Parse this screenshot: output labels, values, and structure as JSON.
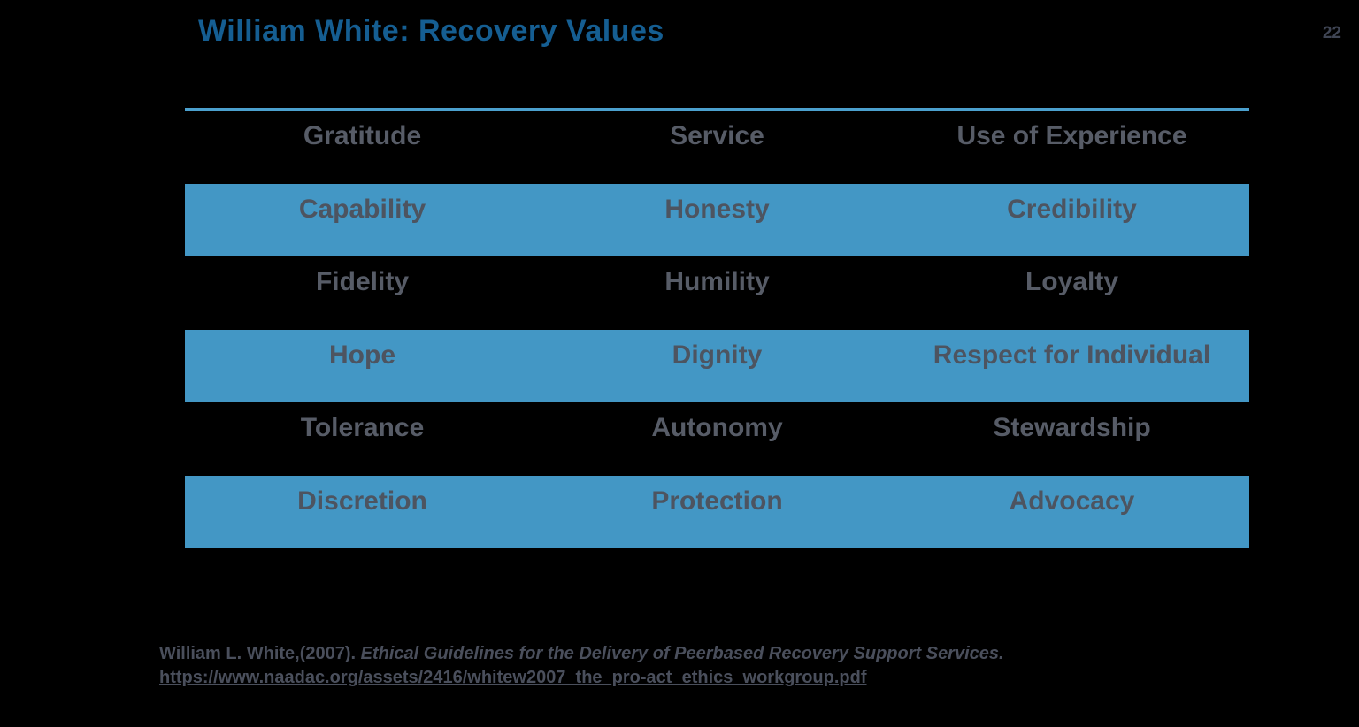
{
  "slide": {
    "title": "William White: Recovery Values",
    "page_number": "22",
    "table": {
      "rows": [
        {
          "highlight": false,
          "cells": [
            "Gratitude",
            "Service",
            "Use of Experience"
          ]
        },
        {
          "highlight": true,
          "cells": [
            "Capability",
            "Honesty",
            "Credibility"
          ]
        },
        {
          "highlight": false,
          "cells": [
            "Fidelity",
            "Humility",
            "Loyalty"
          ]
        },
        {
          "highlight": true,
          "cells": [
            "Hope",
            "Dignity",
            "Respect for Individual"
          ]
        },
        {
          "highlight": false,
          "cells": [
            "Tolerance",
            "Autonomy",
            "Stewardship"
          ]
        },
        {
          "highlight": true,
          "cells": [
            "Discretion",
            "Protection",
            "Advocacy"
          ]
        }
      ]
    },
    "citation": {
      "author_part": "William L. White,(2007). ",
      "work_italic": "Ethical Guidelines for the Delivery of Peerbased Recovery Support Services.",
      "url": "https://www.naadac.org/assets/2416/whitew2007_the_pro-act_ethics_workgroup.pdf"
    },
    "colors": {
      "background": "#000000",
      "title": "#155E92",
      "row_highlight": "#4397C5",
      "divider": "#4BA0CE",
      "cell_text": "#575C67",
      "cell_text_highlight": "#4D5460",
      "citation_text": "#4A4F5C",
      "page_number": "#3F4554"
    }
  }
}
